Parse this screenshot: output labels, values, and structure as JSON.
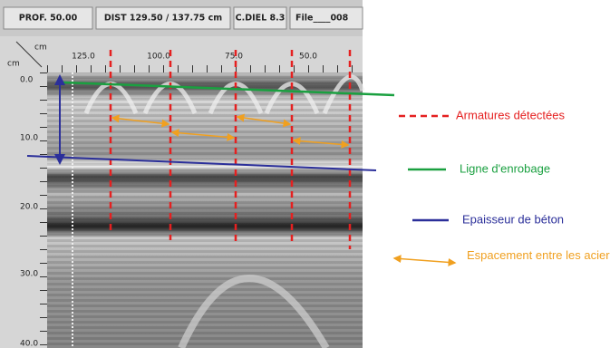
{
  "toolbar": {
    "fields": [
      "PROF. 50.00",
      "DIST 129.50 / 137.75 cm",
      "C.DIEL 8.3",
      "File____008"
    ]
  },
  "radargram": {
    "x_unit": "cm",
    "y_unit": "cm",
    "x_ticks": [
      "125.0",
      "100.0",
      "75.0",
      "50.0"
    ],
    "y_ticks": [
      "0.0",
      "10.0",
      "20.0",
      "30.0",
      "40.0"
    ]
  },
  "legend": {
    "items": [
      "Armatures détectées",
      "Ligne d'enrobage",
      "Epaisseur de béton",
      "Espacement entre les aciers"
    ]
  }
}
